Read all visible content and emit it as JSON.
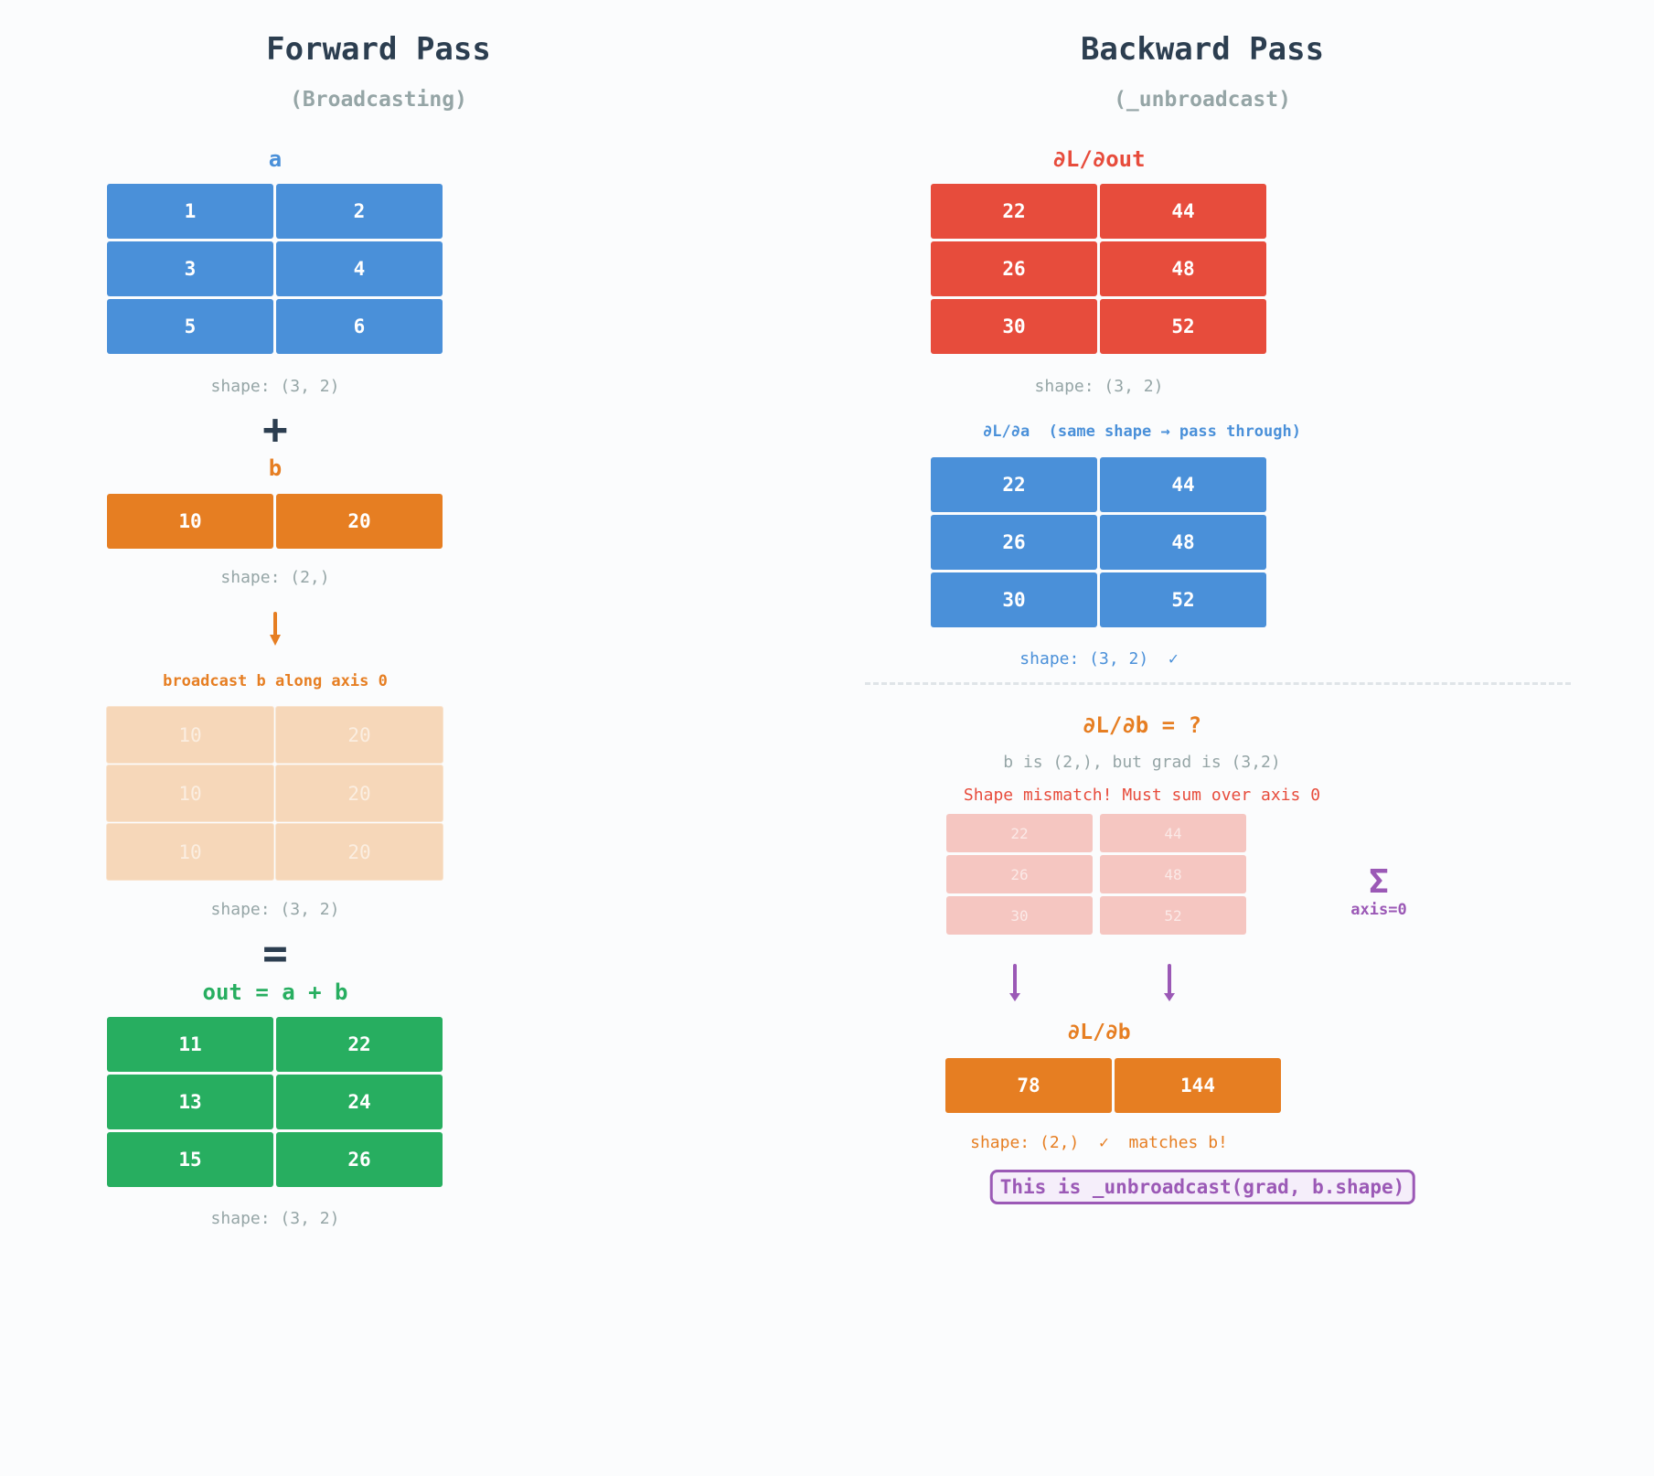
{
  "forward": {
    "title": "Forward Pass",
    "subtitle": "(Broadcasting)",
    "a": {
      "label": "a",
      "values": [
        "1",
        "2",
        "3",
        "4",
        "5",
        "6"
      ],
      "shape": "shape: (3, 2)"
    },
    "plus": "+",
    "b": {
      "label": "b",
      "values": [
        "10",
        "20"
      ],
      "shape": "shape: (2,)"
    },
    "broadcast_note": "broadcast b along axis 0",
    "broadcast": {
      "values": [
        "10",
        "20",
        "10",
        "20",
        "10",
        "20"
      ],
      "shape": "shape: (3, 2)"
    },
    "equals": "=",
    "out": {
      "label": "out = a + b",
      "values": [
        "11",
        "22",
        "13",
        "24",
        "15",
        "26"
      ],
      "shape": "shape: (3, 2)"
    }
  },
  "backward": {
    "title": "Backward Pass",
    "subtitle": "(_unbroadcast)",
    "dout": {
      "label": "∂L/∂out",
      "values": [
        "22",
        "44",
        "26",
        "48",
        "30",
        "52"
      ],
      "shape": "shape: (3, 2)"
    },
    "da": {
      "label": "∂L/∂a  (same shape → pass through)",
      "values": [
        "22",
        "44",
        "26",
        "48",
        "30",
        "52"
      ],
      "shape": "shape: (3, 2)  ✓"
    },
    "db_question": "∂L/∂b = ?",
    "mismatch_info": "b is (2,), but grad is (3,2)",
    "mismatch_warning": "Shape mismatch! Must sum over axis 0",
    "sum_grid": [
      "22",
      "44",
      "26",
      "48",
      "30",
      "52"
    ],
    "sigma": "Σ",
    "sigma_axis": "axis=0",
    "db": {
      "label": "∂L/∂b",
      "values": [
        "78",
        "144"
      ],
      "shape": "shape: (2,)  ✓  matches b!"
    },
    "note": "This is _unbroadcast(grad, b.shape)"
  },
  "colors": {
    "blue": "#4a90d9",
    "red": "#e74c3c",
    "orange": "#e67e22",
    "green": "#27ae60",
    "purple": "#9b59b6",
    "dark": "#2c3e50",
    "gray": "#95a5a6"
  }
}
